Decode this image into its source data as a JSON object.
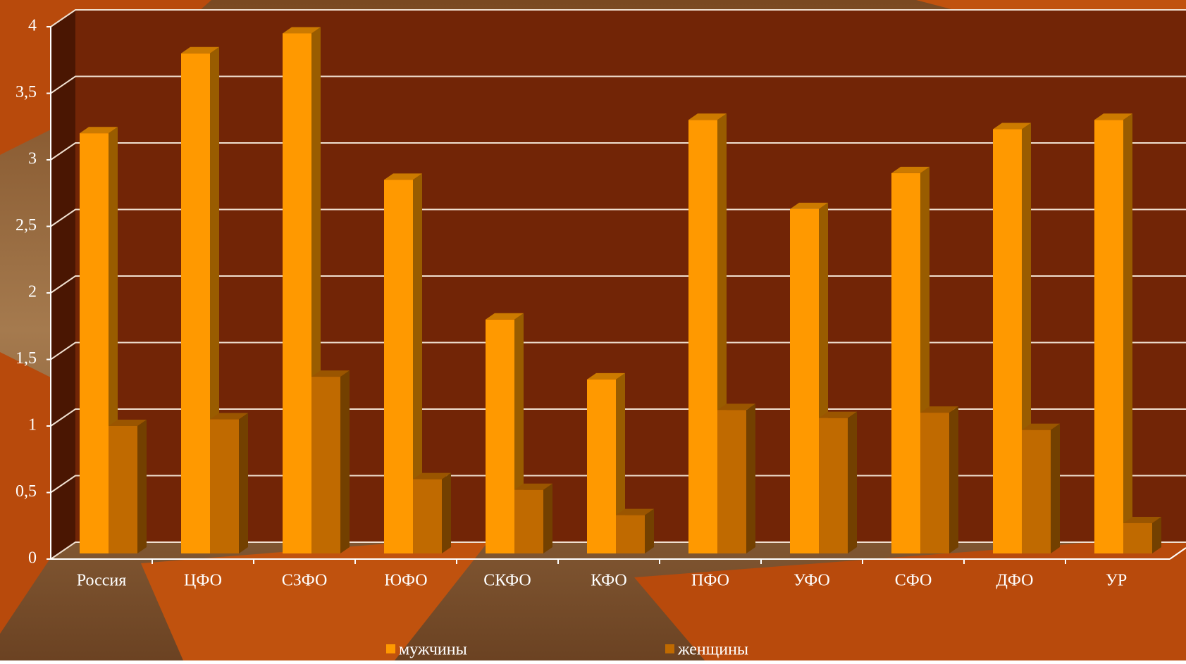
{
  "chart_data": {
    "type": "bar3d",
    "categories": [
      "Россия",
      "ЦФО",
      "СЗФО",
      "ЮФО",
      "СКФО",
      "КФО",
      "ПФО",
      "УФО",
      "СФО",
      "ДФО",
      "УР"
    ],
    "series": [
      {
        "name": "мужчины",
        "color": "#ff9900",
        "values": [
          3.2,
          3.8,
          3.95,
          2.85,
          1.8,
          1.35,
          3.3,
          2.63,
          2.9,
          3.23,
          3.3
        ]
      },
      {
        "name": "женщины",
        "color": "#c06a00",
        "values": [
          1.0,
          1.05,
          1.37,
          0.6,
          0.52,
          0.33,
          1.12,
          1.06,
          1.1,
          0.97,
          0.27
        ]
      }
    ],
    "ylim": [
      0,
      4
    ],
    "yticks": [
      0,
      {
        "value": 0.5,
        "label": "0,5"
      },
      1,
      {
        "value": 1.5,
        "label": "1,5"
      },
      2,
      {
        "value": 2.5,
        "label": "2,5"
      },
      3,
      {
        "value": 3.5,
        "label": "3,5"
      },
      4
    ],
    "grid": true,
    "legend": "bottom"
  }
}
